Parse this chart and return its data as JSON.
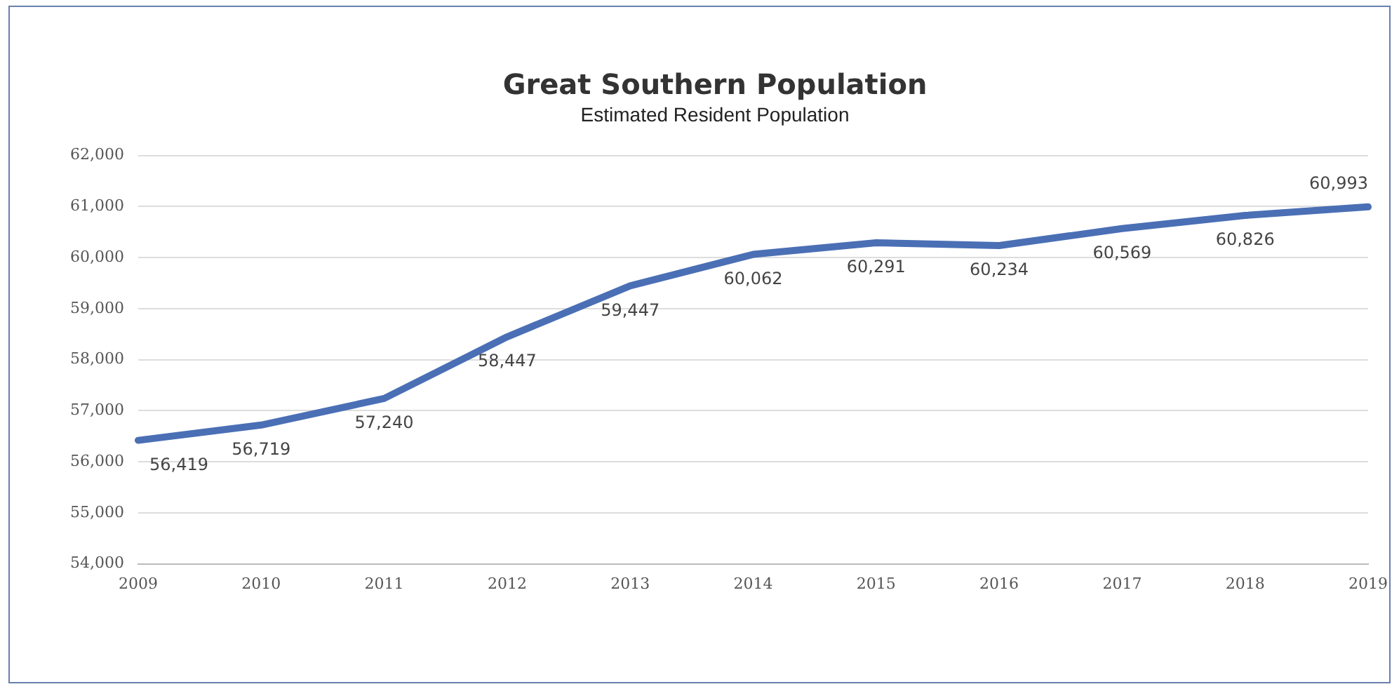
{
  "chart_data": {
    "type": "line",
    "title": "Great Southern Population",
    "subtitle": "Estimated Resident Population",
    "categories": [
      "2009",
      "2010",
      "2011",
      "2012",
      "2013",
      "2014",
      "2015",
      "2016",
      "2017",
      "2018",
      "2019"
    ],
    "series": [
      {
        "color": "#4a6fb5",
        "values": [
          56419,
          56719,
          57240,
          58447,
          59447,
          60062,
          60291,
          60234,
          60569,
          60826,
          60993
        ],
        "value_labels": [
          "56,419",
          "56,719",
          "57,240",
          "58,447",
          "59,447",
          "60,062",
          "60,291",
          "60,234",
          "60,569",
          "60,826",
          "60,993"
        ]
      }
    ],
    "ylim": [
      54000,
      62000
    ],
    "yticks": [
      {
        "value": 54000,
        "label": "54,000"
      },
      {
        "value": 55000,
        "label": "55,000"
      },
      {
        "value": 56000,
        "label": "56,000"
      },
      {
        "value": 57000,
        "label": "57,000"
      },
      {
        "value": 58000,
        "label": "58,000"
      },
      {
        "value": 59000,
        "label": "59,000"
      },
      {
        "value": 60000,
        "label": "60,000"
      },
      {
        "value": 61000,
        "label": "61,000"
      },
      {
        "value": 62000,
        "label": "62,000"
      }
    ],
    "grid": "y",
    "legend": false,
    "marker": "none",
    "line_style": "solid"
  }
}
